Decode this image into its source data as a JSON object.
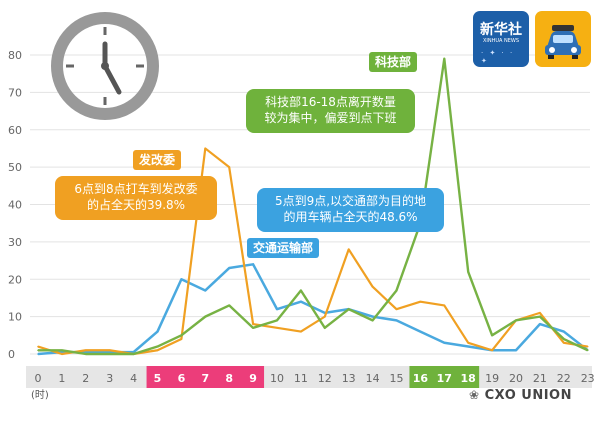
{
  "chart_data": {
    "type": "line",
    "x": [
      0,
      1,
      2,
      3,
      4,
      5,
      6,
      7,
      8,
      9,
      10,
      11,
      12,
      13,
      14,
      15,
      16,
      17,
      18,
      19,
      20,
      21,
      22,
      23
    ],
    "ylim": [
      0,
      80
    ],
    "yticks": [
      0,
      10,
      20,
      30,
      40,
      50,
      60,
      70,
      80
    ],
    "xunit": "(时)",
    "highlight_groups": [
      {
        "hours": [
          5,
          6,
          7,
          8,
          9
        ],
        "color": "#ec3d7a"
      },
      {
        "hours": [
          16,
          17,
          18
        ],
        "color": "#6fb23c"
      }
    ],
    "series": [
      {
        "color": "#4aa9df",
        "values": [
          0,
          0.5,
          0.5,
          0.5,
          0.5,
          6,
          20,
          17,
          23,
          24,
          12,
          14,
          11,
          12,
          10,
          9,
          6,
          3,
          2,
          1,
          1,
          8,
          6,
          1
        ]
      },
      {
        "color": "#f0a022",
        "values": [
          2,
          0,
          1,
          1,
          0,
          1,
          4,
          55,
          50,
          8,
          7,
          6,
          10,
          28,
          18,
          12,
          14,
          13,
          3,
          1,
          9,
          11,
          3,
          2
        ]
      },
      {
        "color": "#77b244",
        "values": [
          1,
          1,
          0,
          0,
          0,
          2,
          5,
          10,
          13,
          7,
          9,
          17,
          7,
          12,
          9,
          17,
          35,
          79,
          22,
          5,
          9,
          10,
          4,
          1
        ]
      }
    ]
  },
  "labels": {
    "ndrc_tag": "发改委",
    "ndrc_note_line1": "6点到8点打车到发改委",
    "ndrc_note_line2": "的占全天的39.8%",
    "most_tag": "科技部",
    "most_note_line1": "科技部16-18点离开数量",
    "most_note_line2": "较为集中，偏爱到点下班",
    "mot_tag": "交通运输部",
    "mot_note_line1": "5点到9点,以交通部为目的地",
    "mot_note_line2": "的用车辆占全天的48.6%"
  },
  "logos": {
    "xinhua_text": "新华社",
    "xinhua_sub": "XINHUA NEWS"
  },
  "watermark": "CXO UNION",
  "colors": {
    "orange": "#f0a022",
    "blue": "#3ba2e0",
    "green": "#6fb23c",
    "pink": "#ec3d7a"
  }
}
